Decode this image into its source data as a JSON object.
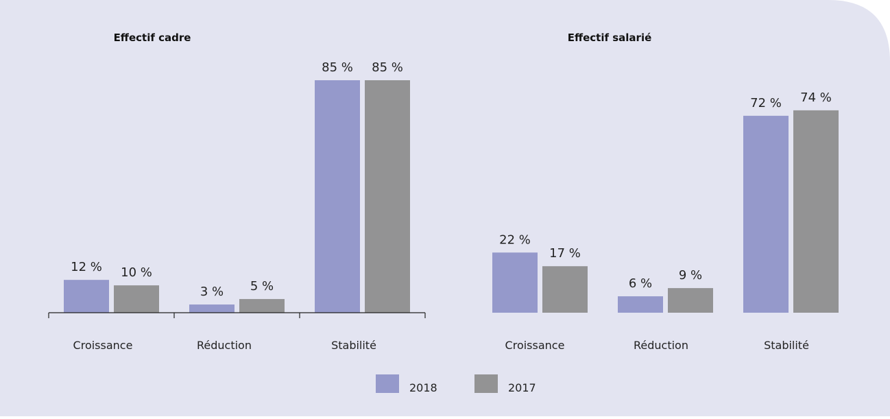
{
  "colors": {
    "background": "#e3e4f1",
    "series_2018": "#9599cb",
    "series_2017": "#939394",
    "axis": "#222222"
  },
  "legend": [
    "2018",
    "2017"
  ],
  "chart_data": [
    {
      "type": "bar",
      "title": "Effectif cadre",
      "categories": [
        "Croissance",
        "Réduction",
        "Stabilité"
      ],
      "series": [
        {
          "name": "2018",
          "values": [
            12,
            3,
            85
          ],
          "labels": [
            "12 %",
            "3 %",
            "85 %"
          ]
        },
        {
          "name": "2017",
          "values": [
            10,
            5,
            85
          ],
          "labels": [
            "10 %",
            "5 %",
            "85 %"
          ]
        }
      ],
      "xlabel": "",
      "ylabel": "",
      "ylim": [
        0,
        100
      ],
      "axis_line": true,
      "grid": false,
      "legend_position": "bottom-center"
    },
    {
      "type": "bar",
      "title": "Effectif salarié",
      "categories": [
        "Croissance",
        "Réduction",
        "Stabilité"
      ],
      "series": [
        {
          "name": "2018",
          "values": [
            22,
            6,
            72
          ],
          "labels": [
            "22 %",
            "6 %",
            "72 %"
          ]
        },
        {
          "name": "2017",
          "values": [
            17,
            9,
            74
          ],
          "labels": [
            "17 %",
            "9 %",
            "74 %"
          ]
        }
      ],
      "xlabel": "",
      "ylabel": "",
      "ylim": [
        0,
        100
      ],
      "axis_line": false,
      "grid": false,
      "legend_position": "bottom-center"
    }
  ]
}
